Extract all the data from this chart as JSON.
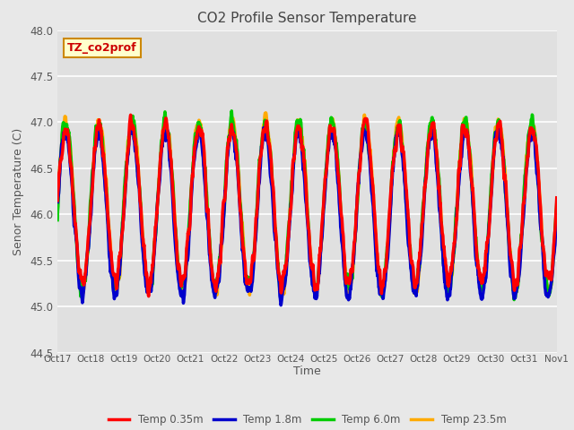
{
  "title": "CO2 Profile Sensor Temperature",
  "ylabel": "Senor Temperature (C)",
  "xlabel": "Time",
  "annotation": "TZ_co2prof",
  "ylim": [
    44.5,
    48.0
  ],
  "yticks": [
    44.5,
    45.0,
    45.5,
    46.0,
    46.5,
    47.0,
    47.5,
    48.0
  ],
  "x_labels": [
    "Oct 17",
    "Oct 18",
    "Oct 19",
    "Oct 20",
    "Oct 21",
    "Oct 22",
    "Oct 23",
    "Oct 24",
    "Oct 25",
    "Oct 26",
    "Oct 27",
    "Oct 28",
    "Oct 29",
    "Oct 30",
    "Oct 31",
    "Nov 1"
  ],
  "series_colors": [
    "#ff0000",
    "#0000cc",
    "#00cc00",
    "#ffaa00"
  ],
  "series_labels": [
    "Temp 0.35m",
    "Temp 1.8m",
    "Temp 6.0m",
    "Temp 23.5m"
  ],
  "background_color": "#e8e8e8",
  "plot_bg_color": "#e0e0e0",
  "grid_color": "#ffffff",
  "annotation_bg": "#ffffcc",
  "annotation_border": "#cc8800",
  "annotation_text_color": "#cc0000",
  "title_color": "#444444",
  "n_points": 1440,
  "seed": 42,
  "linewidth": 2.5
}
